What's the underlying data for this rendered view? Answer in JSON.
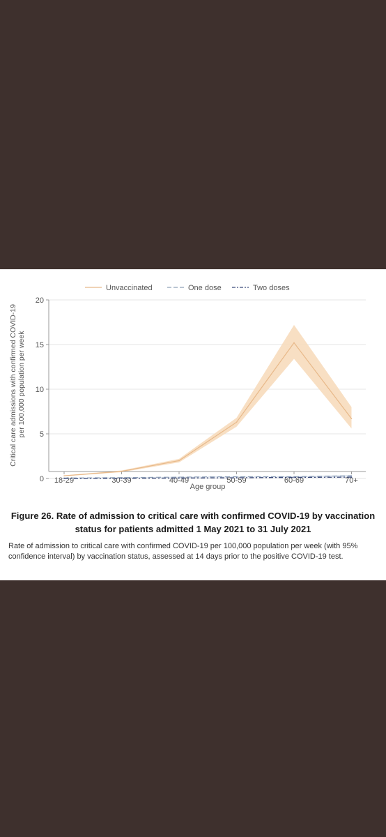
{
  "colors": {
    "background": "#3e302d",
    "unvaccinated": "#e8b98a",
    "unvaccinated_band": "#f7d9b8",
    "one_dose": "#8fa0b8",
    "two_doses": "#3b4a7a",
    "grid": "#e6e6e6",
    "axis": "#9a9a9a"
  },
  "chart_data": {
    "type": "line",
    "title": "",
    "xlabel": "Age group",
    "ylabel": "Critical care admissions with confirmed COVID-19 per 100,000 population per week",
    "categories": [
      "18-29",
      "30-39",
      "40-49",
      "50-59",
      "60-69",
      "70+"
    ],
    "ylim": [
      0,
      20
    ],
    "yticks": [
      0,
      5,
      10,
      15,
      20
    ],
    "grid": true,
    "legend_position": "top",
    "series": [
      {
        "name": "Unvaccinated",
        "style": "solid",
        "values": [
          0.3,
          0.8,
          2.0,
          6.3,
          15.2,
          6.7
        ],
        "lower": [
          0.25,
          0.7,
          1.8,
          5.8,
          13.4,
          5.6
        ],
        "upper": [
          0.35,
          0.9,
          2.2,
          6.8,
          17.2,
          8.0
        ]
      },
      {
        "name": "One dose",
        "style": "longdash",
        "values": [
          0.05,
          0.1,
          0.15,
          0.2,
          0.2,
          0.3
        ],
        "lower": [
          0.02,
          0.06,
          0.1,
          0.15,
          0.15,
          0.2
        ],
        "upper": [
          0.08,
          0.14,
          0.2,
          0.25,
          0.25,
          0.4
        ]
      },
      {
        "name": "Two doses",
        "style": "dashdot",
        "values": [
          0.0,
          0.02,
          0.05,
          0.08,
          0.12,
          0.15
        ],
        "lower": [
          0.0,
          0.01,
          0.03,
          0.06,
          0.1,
          0.12
        ],
        "upper": [
          0.02,
          0.03,
          0.07,
          0.1,
          0.14,
          0.18
        ]
      }
    ]
  },
  "caption": {
    "title": "Figure 26. Rate of admission to critical care with confirmed COVID-19 by vaccination status for patients admitted 1 May 2021 to 31 July 2021",
    "body": "Rate of admission to critical care with confirmed COVID-19 per 100,000 population per week (with 95% confidence interval) by vaccination status, assessed at 14 days prior to the positive COVID-19 test."
  }
}
